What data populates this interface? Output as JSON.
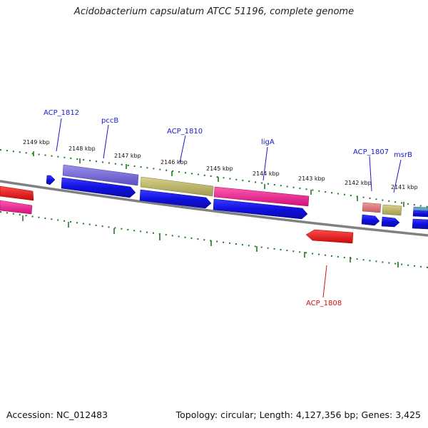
{
  "title": "Acidobacterium capsulatum ATCC 51196, complete genome",
  "footer": {
    "accession": "Accession: NC_012483",
    "topology": "Topology: circular; Length: 4,127,356 bp; Genes: 3,425"
  },
  "scale_labels": [
    "2149 kbp",
    "2148 kbp",
    "2147 kbp",
    "2146 kbp",
    "2145 kbp",
    "2144 kbp",
    "2143 kbp",
    "2142 kbp",
    "2141 kbp"
  ],
  "gene_labels": [
    {
      "text": "ACP_1812",
      "color": "#1a1ac8"
    },
    {
      "text": "pccB",
      "color": "#1a1ac8"
    },
    {
      "text": "ACP_1810",
      "color": "#1a1ac8"
    },
    {
      "text": "ligA",
      "color": "#1a1ac8"
    },
    {
      "text": "ACP_1807",
      "color": "#1a1ac8"
    },
    {
      "text": "msrB",
      "color": "#1a1ac8"
    },
    {
      "text": "ACP_1808",
      "color": "#d01010"
    }
  ],
  "colors": {
    "backbone": "#808080",
    "tick": "#1f7a1f",
    "cds": "#1010e0",
    "red_gene": "#e81414",
    "pink_gene": "#f2198c",
    "purple_gene": "#7b6fd6",
    "olive_gene": "#bdb76b",
    "salmon_gene": "#e07a7a",
    "teal_gene": "#4a8cb0"
  }
}
